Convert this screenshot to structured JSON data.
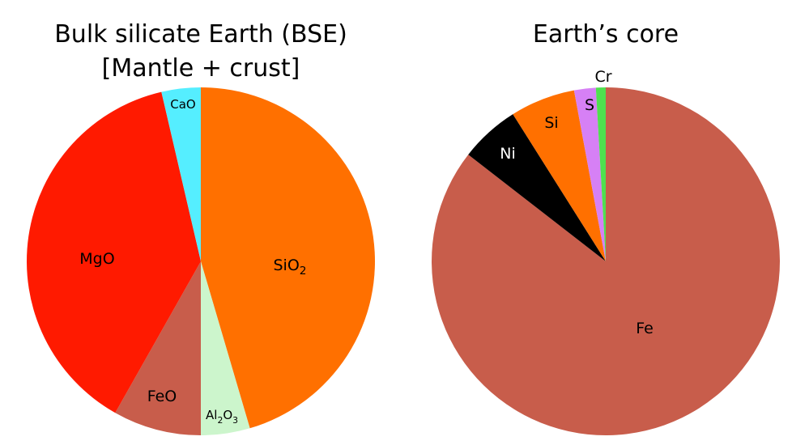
{
  "chart_data": [
    {
      "type": "pie",
      "title_lines": [
        "Bulk silicate Earth (BSE)",
        "[Mantle + crust]"
      ],
      "slices": [
        {
          "label": "SiO",
          "sub": "2",
          "value": 45.0,
          "color": "#FF7000",
          "text_color": "#000000"
        },
        {
          "label": "Al",
          "sub": "2",
          "label2": "O",
          "sub2": "3",
          "value": 4.5,
          "color": "#CCF5CC",
          "text_color": "#000000"
        },
        {
          "label": "FeO",
          "value": 8.1,
          "color": "#C85D4B",
          "text_color": "#000000"
        },
        {
          "label": "MgO",
          "value": 37.8,
          "color": "#FF1A00",
          "text_color": "#000000"
        },
        {
          "label": "CaO",
          "value": 3.6,
          "color": "#55EEFF",
          "text_color": "#000000"
        }
      ]
    },
    {
      "type": "pie",
      "title_lines": [
        "Earth’s core"
      ],
      "slices": [
        {
          "label": "Fe",
          "value": 85.0,
          "color": "#C85D4B",
          "text_color": "#000000"
        },
        {
          "label": "Ni",
          "value": 5.5,
          "color": "#000000",
          "text_color": "#FFFFFF"
        },
        {
          "label": "Si",
          "value": 6.0,
          "color": "#FF7000",
          "text_color": "#000000"
        },
        {
          "label": "S",
          "value": 2.0,
          "color": "#D680F5",
          "text_color": "#000000"
        },
        {
          "label": "Cr",
          "value": 0.9,
          "color": "#4FE04F",
          "text_color": "#000000"
        }
      ]
    }
  ]
}
